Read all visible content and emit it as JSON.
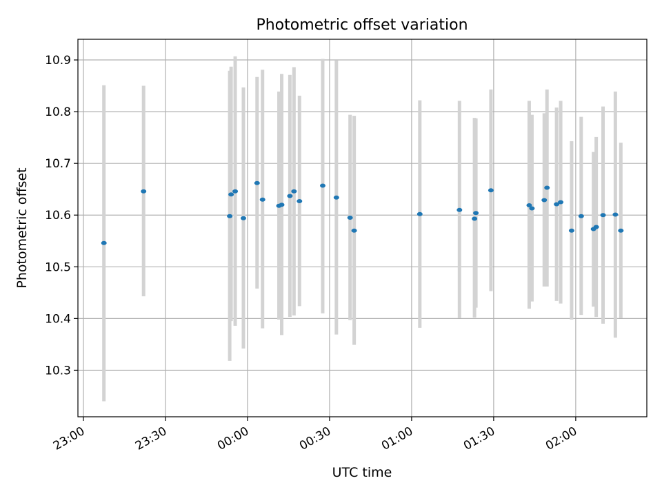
{
  "chart_data": {
    "type": "scatter",
    "title": "Photometric offset variation",
    "xlabel": "UTC time",
    "ylabel": "Photometric offset",
    "x_is_time": true,
    "xlim": [
      "22:58",
      "02:26"
    ],
    "ylim": [
      10.21,
      10.94
    ],
    "x_ticks": [
      "23:00",
      "23:30",
      "00:00",
      "00:30",
      "01:00",
      "01:30",
      "02:00"
    ],
    "y_ticks": [
      "10.3",
      "10.4",
      "10.5",
      "10.6",
      "10.7",
      "10.8",
      "10.9"
    ],
    "grid": true,
    "colors": {
      "marker": "#1f77b4",
      "errorbar": "#d3d3d3",
      "grid": "#b0b0b0"
    },
    "series": [
      {
        "points": [
          {
            "x": "23:07.5",
            "y": 10.546,
            "ylow": 10.24,
            "yhigh": 10.851
          },
          {
            "x": "23:22.0",
            "y": 10.646,
            "ylow": 10.443,
            "yhigh": 10.85
          },
          {
            "x": "23:53.5",
            "y": 10.598,
            "ylow": 10.318,
            "yhigh": 10.879
          },
          {
            "x": "23:54.0",
            "y": 10.64,
            "ylow": 10.395,
            "yhigh": 10.887
          },
          {
            "x": "23:55.5",
            "y": 10.646,
            "ylow": 10.386,
            "yhigh": 10.907
          },
          {
            "x": "23:58.5",
            "y": 10.594,
            "ylow": 10.342,
            "yhigh": 10.847
          },
          {
            "x": "00:03.5",
            "y": 10.662,
            "ylow": 10.458,
            "yhigh": 10.867
          },
          {
            "x": "00:05.5",
            "y": 10.63,
            "ylow": 10.381,
            "yhigh": 10.881
          },
          {
            "x": "00:11.5",
            "y": 10.618,
            "ylow": 10.398,
            "yhigh": 10.839
          },
          {
            "x": "00:12.5",
            "y": 10.62,
            "ylow": 10.368,
            "yhigh": 10.873
          },
          {
            "x": "00:15.5",
            "y": 10.637,
            "ylow": 10.403,
            "yhigh": 10.871
          },
          {
            "x": "00:17.0",
            "y": 10.646,
            "ylow": 10.406,
            "yhigh": 10.886
          },
          {
            "x": "00:19.0",
            "y": 10.627,
            "ylow": 10.424,
            "yhigh": 10.831
          },
          {
            "x": "00:27.5",
            "y": 10.657,
            "ylow": 10.41,
            "yhigh": 10.902
          },
          {
            "x": "00:32.5",
            "y": 10.634,
            "ylow": 10.369,
            "yhigh": 10.899
          },
          {
            "x": "00:37.5",
            "y": 10.595,
            "ylow": 10.397,
            "yhigh": 10.794
          },
          {
            "x": "00:39.0",
            "y": 10.57,
            "ylow": 10.349,
            "yhigh": 10.792
          },
          {
            "x": "01:03.0",
            "y": 10.602,
            "ylow": 10.382,
            "yhigh": 10.822
          },
          {
            "x": "01:17.5",
            "y": 10.61,
            "ylow": 10.401,
            "yhigh": 10.821
          },
          {
            "x": "01:23.0",
            "y": 10.593,
            "ylow": 10.402,
            "yhigh": 10.788
          },
          {
            "x": "01:23.5",
            "y": 10.604,
            "ylow": 10.421,
            "yhigh": 10.787
          },
          {
            "x": "01:29.0",
            "y": 10.648,
            "ylow": 10.453,
            "yhigh": 10.843
          },
          {
            "x": "01:43.0",
            "y": 10.619,
            "ylow": 10.419,
            "yhigh": 10.821
          },
          {
            "x": "01:44.0",
            "y": 10.613,
            "ylow": 10.433,
            "yhigh": 10.794
          },
          {
            "x": "01:48.5",
            "y": 10.629,
            "ylow": 10.462,
            "yhigh": 10.797
          },
          {
            "x": "01:49.5",
            "y": 10.653,
            "ylow": 10.462,
            "yhigh": 10.843
          },
          {
            "x": "01:53.0",
            "y": 10.621,
            "ylow": 10.434,
            "yhigh": 10.808
          },
          {
            "x": "01:54.5",
            "y": 10.625,
            "ylow": 10.429,
            "yhigh": 10.821
          },
          {
            "x": "01:58.5",
            "y": 10.57,
            "ylow": 10.398,
            "yhigh": 10.743
          },
          {
            "x": "02:02.0",
            "y": 10.598,
            "ylow": 10.407,
            "yhigh": 10.79
          },
          {
            "x": "02:06.5",
            "y": 10.573,
            "ylow": 10.423,
            "yhigh": 10.722
          },
          {
            "x": "02:07.5",
            "y": 10.577,
            "ylow": 10.403,
            "yhigh": 10.751
          },
          {
            "x": "02:10.0",
            "y": 10.6,
            "ylow": 10.39,
            "yhigh": 10.81
          },
          {
            "x": "02:14.5",
            "y": 10.601,
            "ylow": 10.363,
            "yhigh": 10.839
          },
          {
            "x": "02:16.5",
            "y": 10.57,
            "ylow": 10.401,
            "yhigh": 10.74
          }
        ]
      }
    ]
  }
}
